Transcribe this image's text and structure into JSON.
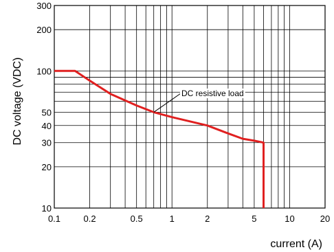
{
  "chart_data": {
    "type": "line",
    "title": "",
    "xlabel": "current (A)",
    "ylabel": "DC voltage (VDC)",
    "x_scale": "log",
    "y_scale": "log",
    "xlim": [
      0.1,
      20
    ],
    "ylim": [
      10,
      300
    ],
    "grid": true,
    "x_grid": [
      0.1,
      0.2,
      0.3,
      0.4,
      0.5,
      0.6,
      0.7,
      0.8,
      0.9,
      1,
      2,
      3,
      4,
      5,
      6,
      7,
      8,
      9,
      10,
      20
    ],
    "y_grid": [
      10,
      20,
      30,
      40,
      50,
      60,
      70,
      80,
      90,
      100,
      200,
      300
    ],
    "x_tick_labels": [
      "0.1",
      "0.2",
      "0.5",
      "1",
      "2",
      "5",
      "10",
      "20"
    ],
    "y_tick_labels": [
      "10",
      "20",
      "30",
      "40",
      "50",
      "100",
      "200",
      "300"
    ],
    "series": [
      {
        "name": "DC resistive load",
        "color": "#e02020",
        "points": [
          {
            "x": 0.1,
            "y": 100
          },
          {
            "x": 0.15,
            "y": 100
          },
          {
            "x": 0.2,
            "y": 85
          },
          {
            "x": 0.3,
            "y": 68
          },
          {
            "x": 0.5,
            "y": 56
          },
          {
            "x": 0.7,
            "y": 50
          },
          {
            "x": 1,
            "y": 46
          },
          {
            "x": 2,
            "y": 40
          },
          {
            "x": 3,
            "y": 35
          },
          {
            "x": 4,
            "y": 32
          },
          {
            "x": 5,
            "y": 31
          },
          {
            "x": 6,
            "y": 30
          },
          {
            "x": 6,
            "y": 10
          }
        ]
      }
    ],
    "annotations": [
      {
        "text": "DC resistive load",
        "point": {
          "x": 0.7,
          "y": 50
        }
      }
    ]
  }
}
